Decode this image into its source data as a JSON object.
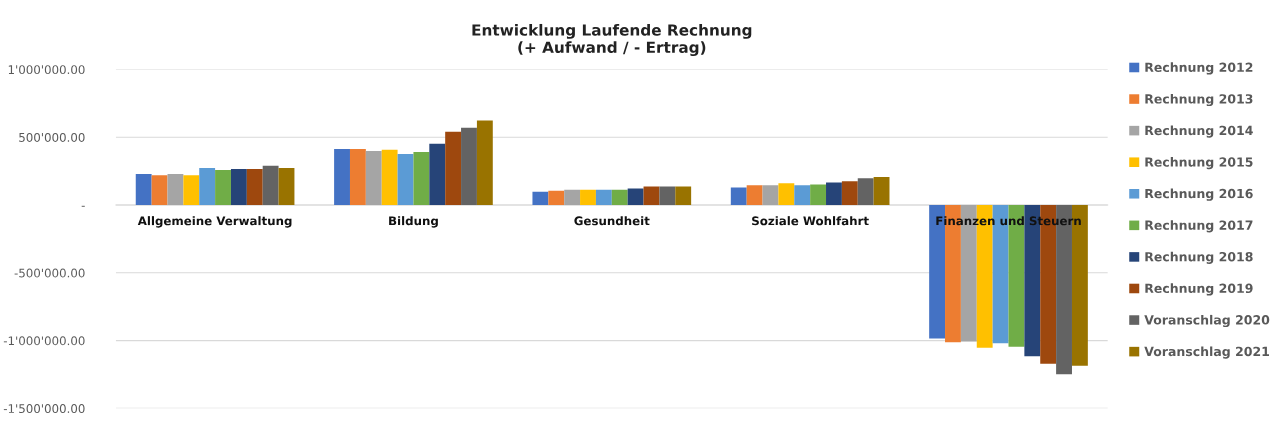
{
  "chart_data": {
    "type": "bar",
    "title": "Entwicklung Laufende Rechnung\n(+ Aufwand / - Ertrag)",
    "categories": [
      "Allgemeine Verwaltung",
      "Bildung",
      "Gesundheit",
      "Soziale Wohlfahrt",
      "Finanzen und Steuern"
    ],
    "series": [
      {
        "name": "Rechnung 2012",
        "color": "#4472c4",
        "values": [
          228000,
          414000,
          98000,
          129000,
          -984000
        ]
      },
      {
        "name": "Rechnung 2013",
        "color": "#ed7d31",
        "values": [
          220000,
          414000,
          105000,
          145000,
          -1013000
        ]
      },
      {
        "name": "Rechnung 2014",
        "color": "#a5a5a5",
        "values": [
          228000,
          399000,
          112000,
          145000,
          -1006000
        ]
      },
      {
        "name": "Rechnung 2015",
        "color": "#ffc000",
        "values": [
          220000,
          407000,
          112000,
          160000,
          -1053000
        ]
      },
      {
        "name": "Rechnung 2016",
        "color": "#5b9bd5",
        "values": [
          273000,
          376000,
          112000,
          145000,
          -1020000
        ]
      },
      {
        "name": "Rechnung 2017",
        "color": "#70ad47",
        "values": [
          258000,
          392000,
          112000,
          152000,
          -1046000
        ]
      },
      {
        "name": "Rechnung 2018",
        "color": "#264478",
        "values": [
          266000,
          452000,
          121000,
          167000,
          -1115000
        ]
      },
      {
        "name": "Rechnung 2019",
        "color": "#9e480e",
        "values": [
          266000,
          540000,
          136000,
          176000,
          -1170000
        ]
      },
      {
        "name": "Voranschlag 2020",
        "color": "#636363",
        "values": [
          289000,
          570000,
          136000,
          198000,
          -1249000
        ]
      },
      {
        "name": "Voranschlag 2021",
        "color": "#997300",
        "values": [
          273000,
          624000,
          136000,
          207000,
          -1185000
        ]
      }
    ],
    "ylim": [
      -1500000,
      1000000
    ],
    "yticks": [
      {
        "value": -1500000,
        "label": "-1'500'000.00"
      },
      {
        "value": -1000000,
        "label": "-1'000'000.00"
      },
      {
        "value": -500000,
        "label": "-500'000.00"
      },
      {
        "value": 0,
        "label": "-"
      },
      {
        "value": 500000,
        "label": "500'000.00"
      },
      {
        "value": 1000000,
        "label": "1'000'000.00"
      }
    ],
    "grid": "y",
    "legend": "right"
  }
}
